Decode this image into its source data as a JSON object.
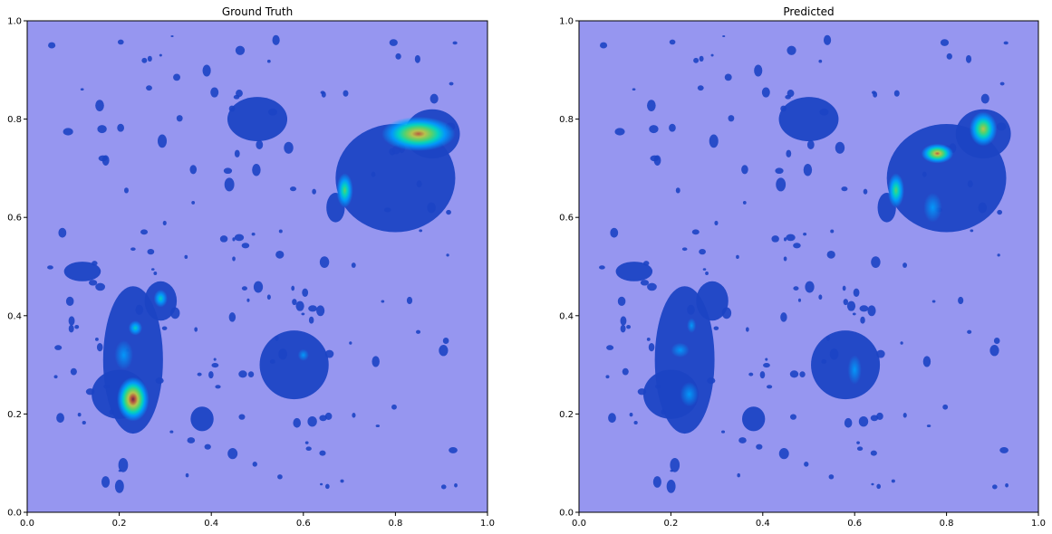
{
  "chart_data": [
    {
      "type": "heatmap",
      "title": "Ground Truth",
      "xlabel": "",
      "ylabel": "",
      "xlim": [
        0,
        1
      ],
      "ylim": [
        0,
        1
      ],
      "xticks": [
        "0.0",
        "0.2",
        "0.4",
        "0.6",
        "0.8",
        "1.0"
      ],
      "yticks": [
        "0.0",
        "0.2",
        "0.4",
        "0.6",
        "0.8",
        "1.0"
      ],
      "grid": false,
      "colormap": "jet",
      "background_color": "#9696f0",
      "tissue_color": "#1c44c4",
      "tissue_regions": [
        {
          "cx": 0.5,
          "cy": 0.8,
          "rx": 0.065,
          "ry": 0.045
        },
        {
          "cx": 0.8,
          "cy": 0.68,
          "rx": 0.13,
          "ry": 0.11
        },
        {
          "cx": 0.88,
          "cy": 0.77,
          "rx": 0.06,
          "ry": 0.05
        },
        {
          "cx": 0.23,
          "cy": 0.31,
          "rx": 0.065,
          "ry": 0.15
        },
        {
          "cx": 0.29,
          "cy": 0.43,
          "rx": 0.035,
          "ry": 0.04
        },
        {
          "cx": 0.2,
          "cy": 0.24,
          "rx": 0.06,
          "ry": 0.05
        },
        {
          "cx": 0.58,
          "cy": 0.3,
          "rx": 0.075,
          "ry": 0.07
        },
        {
          "cx": 0.38,
          "cy": 0.19,
          "rx": 0.025,
          "ry": 0.025
        },
        {
          "cx": 0.12,
          "cy": 0.49,
          "rx": 0.04,
          "ry": 0.02
        },
        {
          "cx": 0.67,
          "cy": 0.62,
          "rx": 0.02,
          "ry": 0.03
        }
      ],
      "hotspots": [
        {
          "x": 0.23,
          "y": 0.23,
          "intensity": 1.0,
          "rx": 0.035,
          "ry": 0.045
        },
        {
          "x": 0.85,
          "y": 0.77,
          "intensity": 0.95,
          "rx": 0.08,
          "ry": 0.035
        },
        {
          "x": 0.69,
          "y": 0.655,
          "intensity": 0.55,
          "rx": 0.018,
          "ry": 0.035
        },
        {
          "x": 0.29,
          "y": 0.435,
          "intensity": 0.3,
          "rx": 0.015,
          "ry": 0.018
        },
        {
          "x": 0.235,
          "y": 0.375,
          "intensity": 0.25,
          "rx": 0.015,
          "ry": 0.015
        },
        {
          "x": 0.21,
          "y": 0.32,
          "intensity": 0.15,
          "rx": 0.02,
          "ry": 0.03
        },
        {
          "x": 0.6,
          "y": 0.32,
          "intensity": 0.15,
          "rx": 0.012,
          "ry": 0.012
        }
      ]
    },
    {
      "type": "heatmap",
      "title": "Predicted",
      "xlabel": "",
      "ylabel": "",
      "xlim": [
        0,
        1
      ],
      "ylim": [
        0,
        1
      ],
      "xticks": [
        "0.0",
        "0.2",
        "0.4",
        "0.6",
        "0.8",
        "1.0"
      ],
      "yticks": [
        "0.0",
        "0.2",
        "0.4",
        "0.6",
        "0.8",
        "1.0"
      ],
      "grid": false,
      "colormap": "jet",
      "background_color": "#9696f0",
      "tissue_color": "#1c44c4",
      "tissue_regions": [
        {
          "cx": 0.5,
          "cy": 0.8,
          "rx": 0.065,
          "ry": 0.045
        },
        {
          "cx": 0.8,
          "cy": 0.68,
          "rx": 0.13,
          "ry": 0.11
        },
        {
          "cx": 0.88,
          "cy": 0.77,
          "rx": 0.06,
          "ry": 0.05
        },
        {
          "cx": 0.23,
          "cy": 0.31,
          "rx": 0.065,
          "ry": 0.15
        },
        {
          "cx": 0.29,
          "cy": 0.43,
          "rx": 0.035,
          "ry": 0.04
        },
        {
          "cx": 0.2,
          "cy": 0.24,
          "rx": 0.06,
          "ry": 0.05
        },
        {
          "cx": 0.58,
          "cy": 0.3,
          "rx": 0.075,
          "ry": 0.07
        },
        {
          "cx": 0.38,
          "cy": 0.19,
          "rx": 0.025,
          "ry": 0.025
        },
        {
          "cx": 0.12,
          "cy": 0.49,
          "rx": 0.04,
          "ry": 0.02
        },
        {
          "cx": 0.67,
          "cy": 0.62,
          "rx": 0.02,
          "ry": 0.03
        }
      ],
      "hotspots": [
        {
          "x": 0.78,
          "y": 0.73,
          "intensity": 0.9,
          "rx": 0.035,
          "ry": 0.02
        },
        {
          "x": 0.88,
          "y": 0.78,
          "intensity": 0.7,
          "rx": 0.03,
          "ry": 0.035
        },
        {
          "x": 0.69,
          "y": 0.655,
          "intensity": 0.55,
          "rx": 0.018,
          "ry": 0.035
        },
        {
          "x": 0.77,
          "y": 0.62,
          "intensity": 0.2,
          "rx": 0.02,
          "ry": 0.03
        },
        {
          "x": 0.24,
          "y": 0.24,
          "intensity": 0.2,
          "rx": 0.02,
          "ry": 0.025
        },
        {
          "x": 0.22,
          "y": 0.33,
          "intensity": 0.15,
          "rx": 0.02,
          "ry": 0.015
        },
        {
          "x": 0.245,
          "y": 0.38,
          "intensity": 0.15,
          "rx": 0.01,
          "ry": 0.015
        },
        {
          "x": 0.6,
          "y": 0.29,
          "intensity": 0.15,
          "rx": 0.015,
          "ry": 0.03
        }
      ]
    }
  ]
}
